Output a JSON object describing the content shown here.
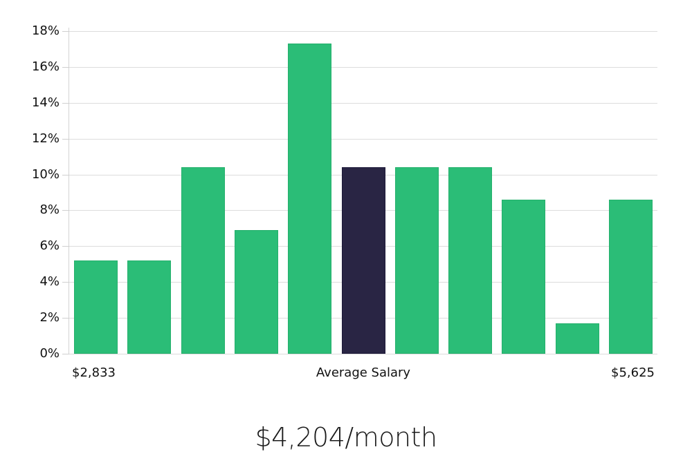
{
  "chart_data": {
    "type": "bar",
    "title": "",
    "xlabel": "Average Salary",
    "ylabel": "",
    "ylim": [
      0,
      18
    ],
    "yticks": [
      "0%",
      "2%",
      "4%",
      "6%",
      "8%",
      "10%",
      "12%",
      "14%",
      "16%",
      "18%"
    ],
    "x_range_labels": {
      "min": "$2,833",
      "center": "Average Salary",
      "max": "$5,625"
    },
    "categories": [
      "bin1",
      "bin2",
      "bin3",
      "bin4",
      "bin5",
      "bin6",
      "bin7",
      "bin8",
      "bin9",
      "bin10",
      "bin11"
    ],
    "values": [
      5.2,
      5.2,
      10.4,
      6.9,
      17.3,
      10.4,
      10.4,
      10.4,
      8.6,
      1.7,
      8.6
    ],
    "highlight_index": 5,
    "grid": true,
    "legend": null,
    "colors": {
      "bar": "#2bbd77",
      "bar_border": "#24b06c",
      "highlight": "#292544",
      "highlight_border": "#1c1838",
      "grid": "#dcdcdc"
    }
  },
  "footer": {
    "salary_text": "$4,204/month"
  }
}
